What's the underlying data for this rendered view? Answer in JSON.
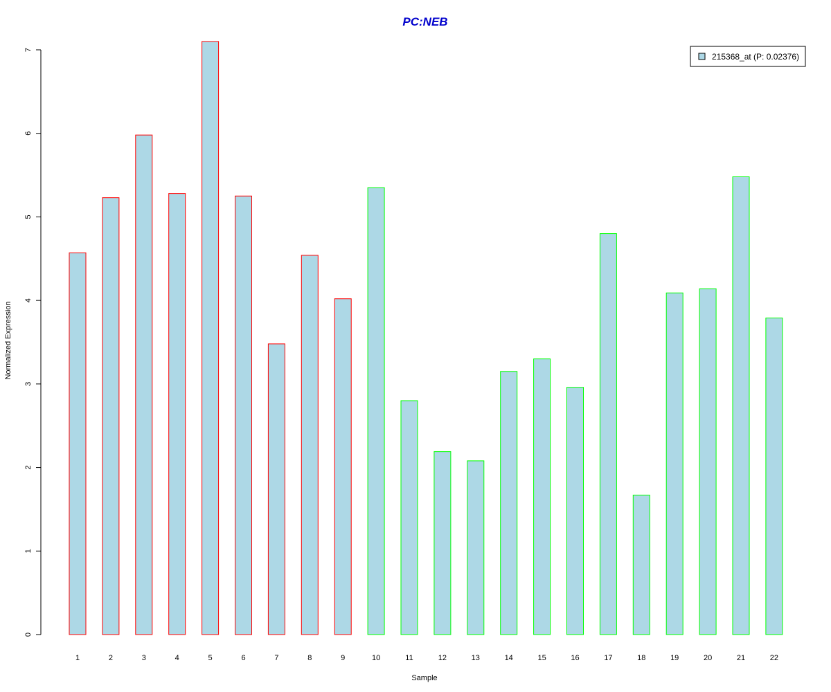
{
  "chart_data": {
    "type": "bar",
    "title": "PC:NEB",
    "title_color": "#0000CC",
    "xlabel": "Sample",
    "ylabel": "Normalized Expression",
    "ylim": [
      0,
      7
    ],
    "yticks": [
      0,
      1,
      2,
      3,
      4,
      5,
      6,
      7
    ],
    "grid": false,
    "legend_position": "top-right",
    "categories": [
      "1",
      "2",
      "3",
      "4",
      "5",
      "6",
      "7",
      "8",
      "9",
      "10",
      "11",
      "12",
      "13",
      "14",
      "15",
      "16",
      "17",
      "18",
      "19",
      "20",
      "21",
      "22"
    ],
    "series": [
      {
        "name": "215368_at (P: 0.02376)",
        "fill": "#ADD8E6",
        "values": [
          4.57,
          5.23,
          5.98,
          5.28,
          7.1,
          5.25,
          3.48,
          4.54,
          4.02,
          5.35,
          2.8,
          2.19,
          2.08,
          3.15,
          3.3,
          2.96,
          4.8,
          1.67,
          4.09,
          4.14,
          5.48,
          3.79
        ]
      }
    ],
    "bar_borders": [
      "#FF0000",
      "#FF0000",
      "#FF0000",
      "#FF0000",
      "#FF0000",
      "#FF0000",
      "#FF0000",
      "#FF0000",
      "#FF0000",
      "#00FF00",
      "#00FF00",
      "#00FF00",
      "#00FF00",
      "#00FF00",
      "#00FF00",
      "#00FF00",
      "#00FF00",
      "#00FF00",
      "#00FF00",
      "#00FF00",
      "#00FF00",
      "#00FF00"
    ]
  }
}
